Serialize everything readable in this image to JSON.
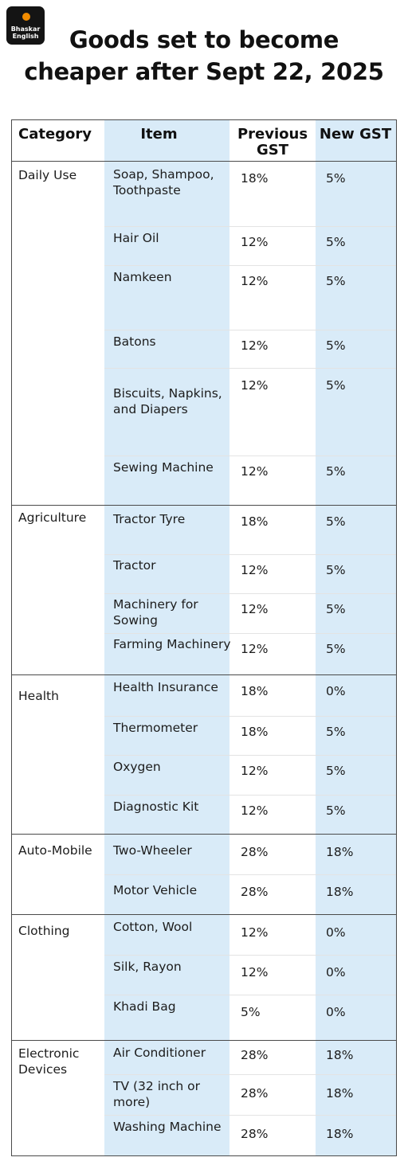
{
  "logo": {
    "line1": "Bhaskar",
    "line2": "English",
    "dot_color": "#f28c00"
  },
  "title": {
    "line1": "Goods set to become",
    "line2": "cheaper after Sept 22, 2025"
  },
  "table": {
    "headers": {
      "category": "Category",
      "item": "Item",
      "previous": "Previous GST",
      "new": "New GST"
    },
    "colors": {
      "highlight": "#d9ebf8",
      "border": "#4a4a4a",
      "row_divider": "#e3e3e3"
    },
    "groups": [
      {
        "category": "Daily Use",
        "rows": [
          {
            "item": "Soap, Shampoo, Toothpaste",
            "previous": "18%",
            "new": "5%"
          },
          {
            "item": "Hair Oil",
            "previous": "12%",
            "new": "5%"
          },
          {
            "item": "Namkeen",
            "previous": "12%",
            "new": "5%"
          },
          {
            "item": "Batons",
            "previous": "12%",
            "new": "5%"
          },
          {
            "item": "Biscuits, Napkins, and Diapers",
            "previous": "12%",
            "new": "5%"
          },
          {
            "item": "Sewing Machine",
            "previous": "12%",
            "new": "5%"
          }
        ]
      },
      {
        "category": "Agriculture",
        "rows": [
          {
            "item": "Tractor Tyre",
            "previous": "18%",
            "new": "5%"
          },
          {
            "item": "Tractor",
            "previous": "12%",
            "new": "5%"
          },
          {
            "item": "Machinery for Sowing",
            "previous": "12%",
            "new": "5%"
          },
          {
            "item": "Farming Machinery",
            "previous": "12%",
            "new": "5%"
          }
        ]
      },
      {
        "category": "Health",
        "rows": [
          {
            "item": "Health Insurance",
            "previous": "18%",
            "new": "0%"
          },
          {
            "item": "Thermometer",
            "previous": "18%",
            "new": "5%"
          },
          {
            "item": "Oxygen",
            "previous": "12%",
            "new": "5%"
          },
          {
            "item": "Diagnostic Kit",
            "previous": "12%",
            "new": "5%"
          }
        ]
      },
      {
        "category": "Auto-Mobile",
        "rows": [
          {
            "item": "Two-Wheeler",
            "previous": "28%",
            "new": "18%"
          },
          {
            "item": "Motor Vehicle",
            "previous": "28%",
            "new": "18%"
          }
        ]
      },
      {
        "category": "Clothing",
        "rows": [
          {
            "item": "Cotton, Wool",
            "previous": "12%",
            "new": "0%"
          },
          {
            "item": "Silk, Rayon",
            "previous": "12%",
            "new": "0%"
          },
          {
            "item": "Khadi Bag",
            "previous": "5%",
            "new": "0%"
          }
        ]
      },
      {
        "category": "Electronic Devices",
        "rows": [
          {
            "item": "Air Conditioner",
            "previous": "28%",
            "new": "18%"
          },
          {
            "item": "TV (32 inch or more)",
            "previous": "28%",
            "new": "18%"
          },
          {
            "item": "Washing Machine",
            "previous": "28%",
            "new": "18%"
          }
        ]
      }
    ]
  }
}
